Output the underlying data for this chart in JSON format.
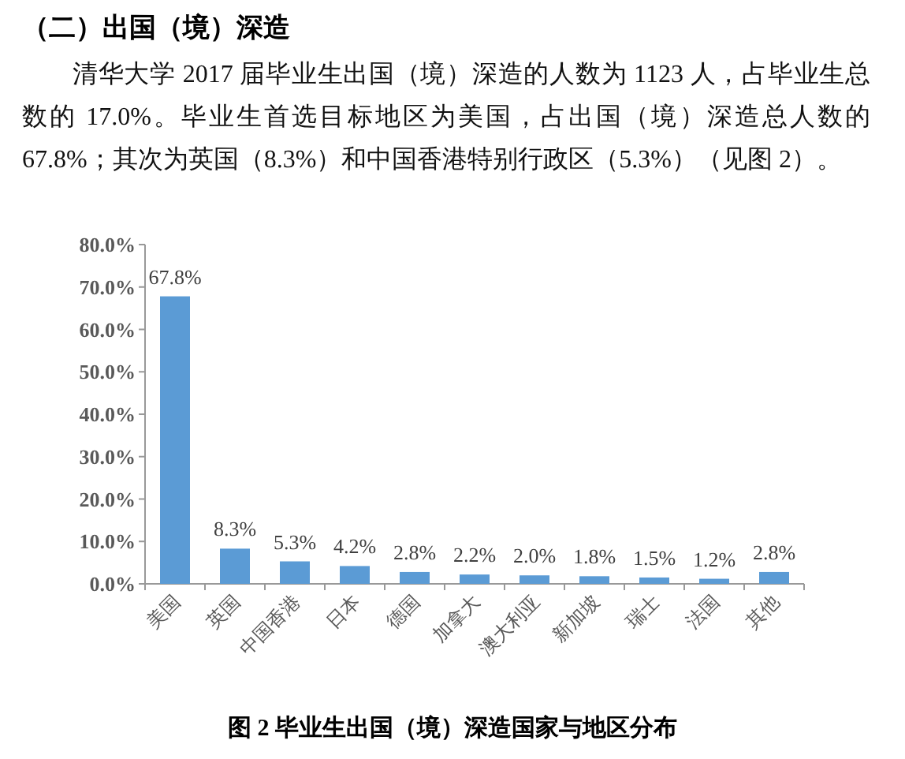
{
  "chart_data": {
    "type": "bar",
    "title": "（二）出国（境）深造",
    "subtitle": "清华大学 2017 届毕业生出国（境）深造的人数为 1123 人，占毕业生总数的 17.0%。毕业生首选目标地区为美国，占出国（境）深造总人数的 67.8%；其次为英国（8.3%）和中国香港特别行政区（5.3%）（见图 2）。",
    "categories": [
      "美国",
      "英国",
      "中国香港",
      "日本",
      "德国",
      "加拿大",
      "澳大利亚",
      "新加坡",
      "瑞士",
      "法国",
      "其他"
    ],
    "values": [
      67.8,
      8.3,
      5.3,
      4.2,
      2.8,
      2.2,
      2.0,
      1.8,
      1.5,
      1.2,
      2.8
    ],
    "value_labels": [
      "67.8%",
      "8.3%",
      "5.3%",
      "4.2%",
      "2.8%",
      "2.2%",
      "2.0%",
      "1.8%",
      "1.5%",
      "1.2%",
      "2.8%"
    ],
    "color": "#5b9bd5",
    "ylim": [
      0,
      80
    ],
    "yticks": [
      {
        "value": 0,
        "label": "0.0%"
      },
      {
        "value": 10,
        "label": "10.0%"
      },
      {
        "value": 20,
        "label": "20.0%"
      },
      {
        "value": 30,
        "label": "30.0%"
      },
      {
        "value": 40,
        "label": "40.0%"
      },
      {
        "value": 50,
        "label": "50.0%"
      },
      {
        "value": 60,
        "label": "60.0%"
      },
      {
        "value": 70,
        "label": "70.0%"
      },
      {
        "value": 80,
        "label": "80.0%"
      }
    ],
    "annotations": [
      "图 2 毕业生出国（境）深造国家与地区分布"
    ]
  }
}
